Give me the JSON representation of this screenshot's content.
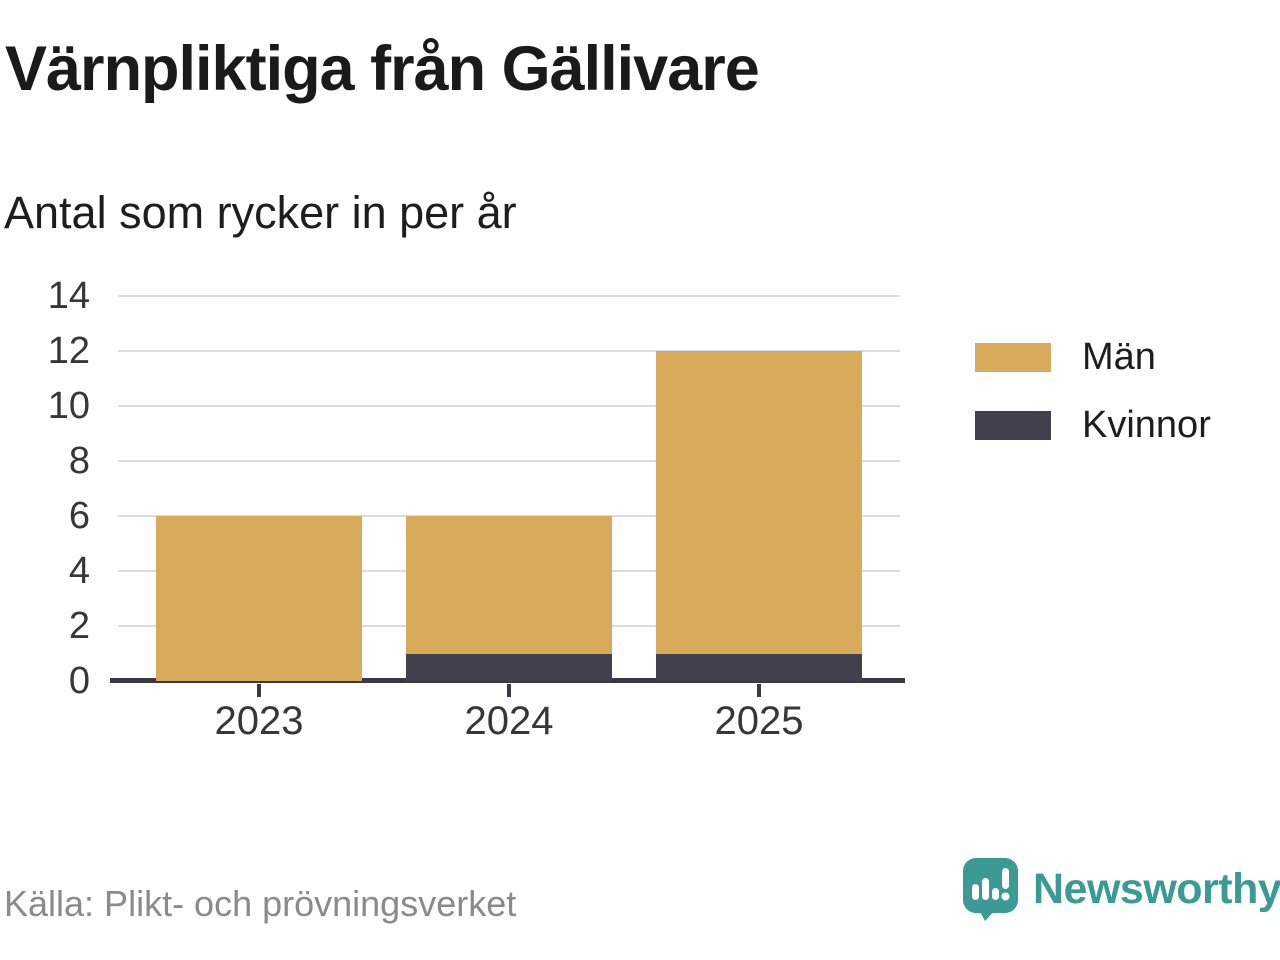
{
  "header": {
    "title": "Värnpliktiga från Gällivare",
    "subtitle": "Antal som rycker in per år"
  },
  "chart_data": {
    "type": "bar",
    "stacked": true,
    "title": "Värnpliktiga från Gällivare",
    "subtitle": "Antal som rycker in per år",
    "categories": [
      "2023",
      "2024",
      "2025"
    ],
    "series": [
      {
        "name": "Män",
        "color": "#d8aa5c",
        "values": [
          6,
          5,
          11
        ]
      },
      {
        "name": "Kvinnor",
        "color": "#42404d",
        "values": [
          0,
          1,
          1
        ]
      }
    ],
    "stack_order_bottom_to_top": [
      "Kvinnor",
      "Män"
    ],
    "totals": [
      6,
      6,
      12
    ],
    "xlabel": "",
    "ylabel": "",
    "ylim": [
      0,
      14
    ],
    "yticks": [
      0,
      2,
      4,
      6,
      8,
      10,
      12,
      14
    ],
    "grid": true,
    "legend_position": "right",
    "colors": {
      "grid": "#dcdcdc",
      "axis": "#3b3946",
      "tick_label": "#373737"
    }
  },
  "legend": {
    "items": [
      {
        "label": "Män",
        "color": "#d8aa5c"
      },
      {
        "label": "Kvinnor",
        "color": "#42404d"
      }
    ]
  },
  "footer": {
    "source": "Källa: Plikt- och prövningsverket",
    "brand": "Newsworthy",
    "brand_color": "#3b9a93"
  }
}
